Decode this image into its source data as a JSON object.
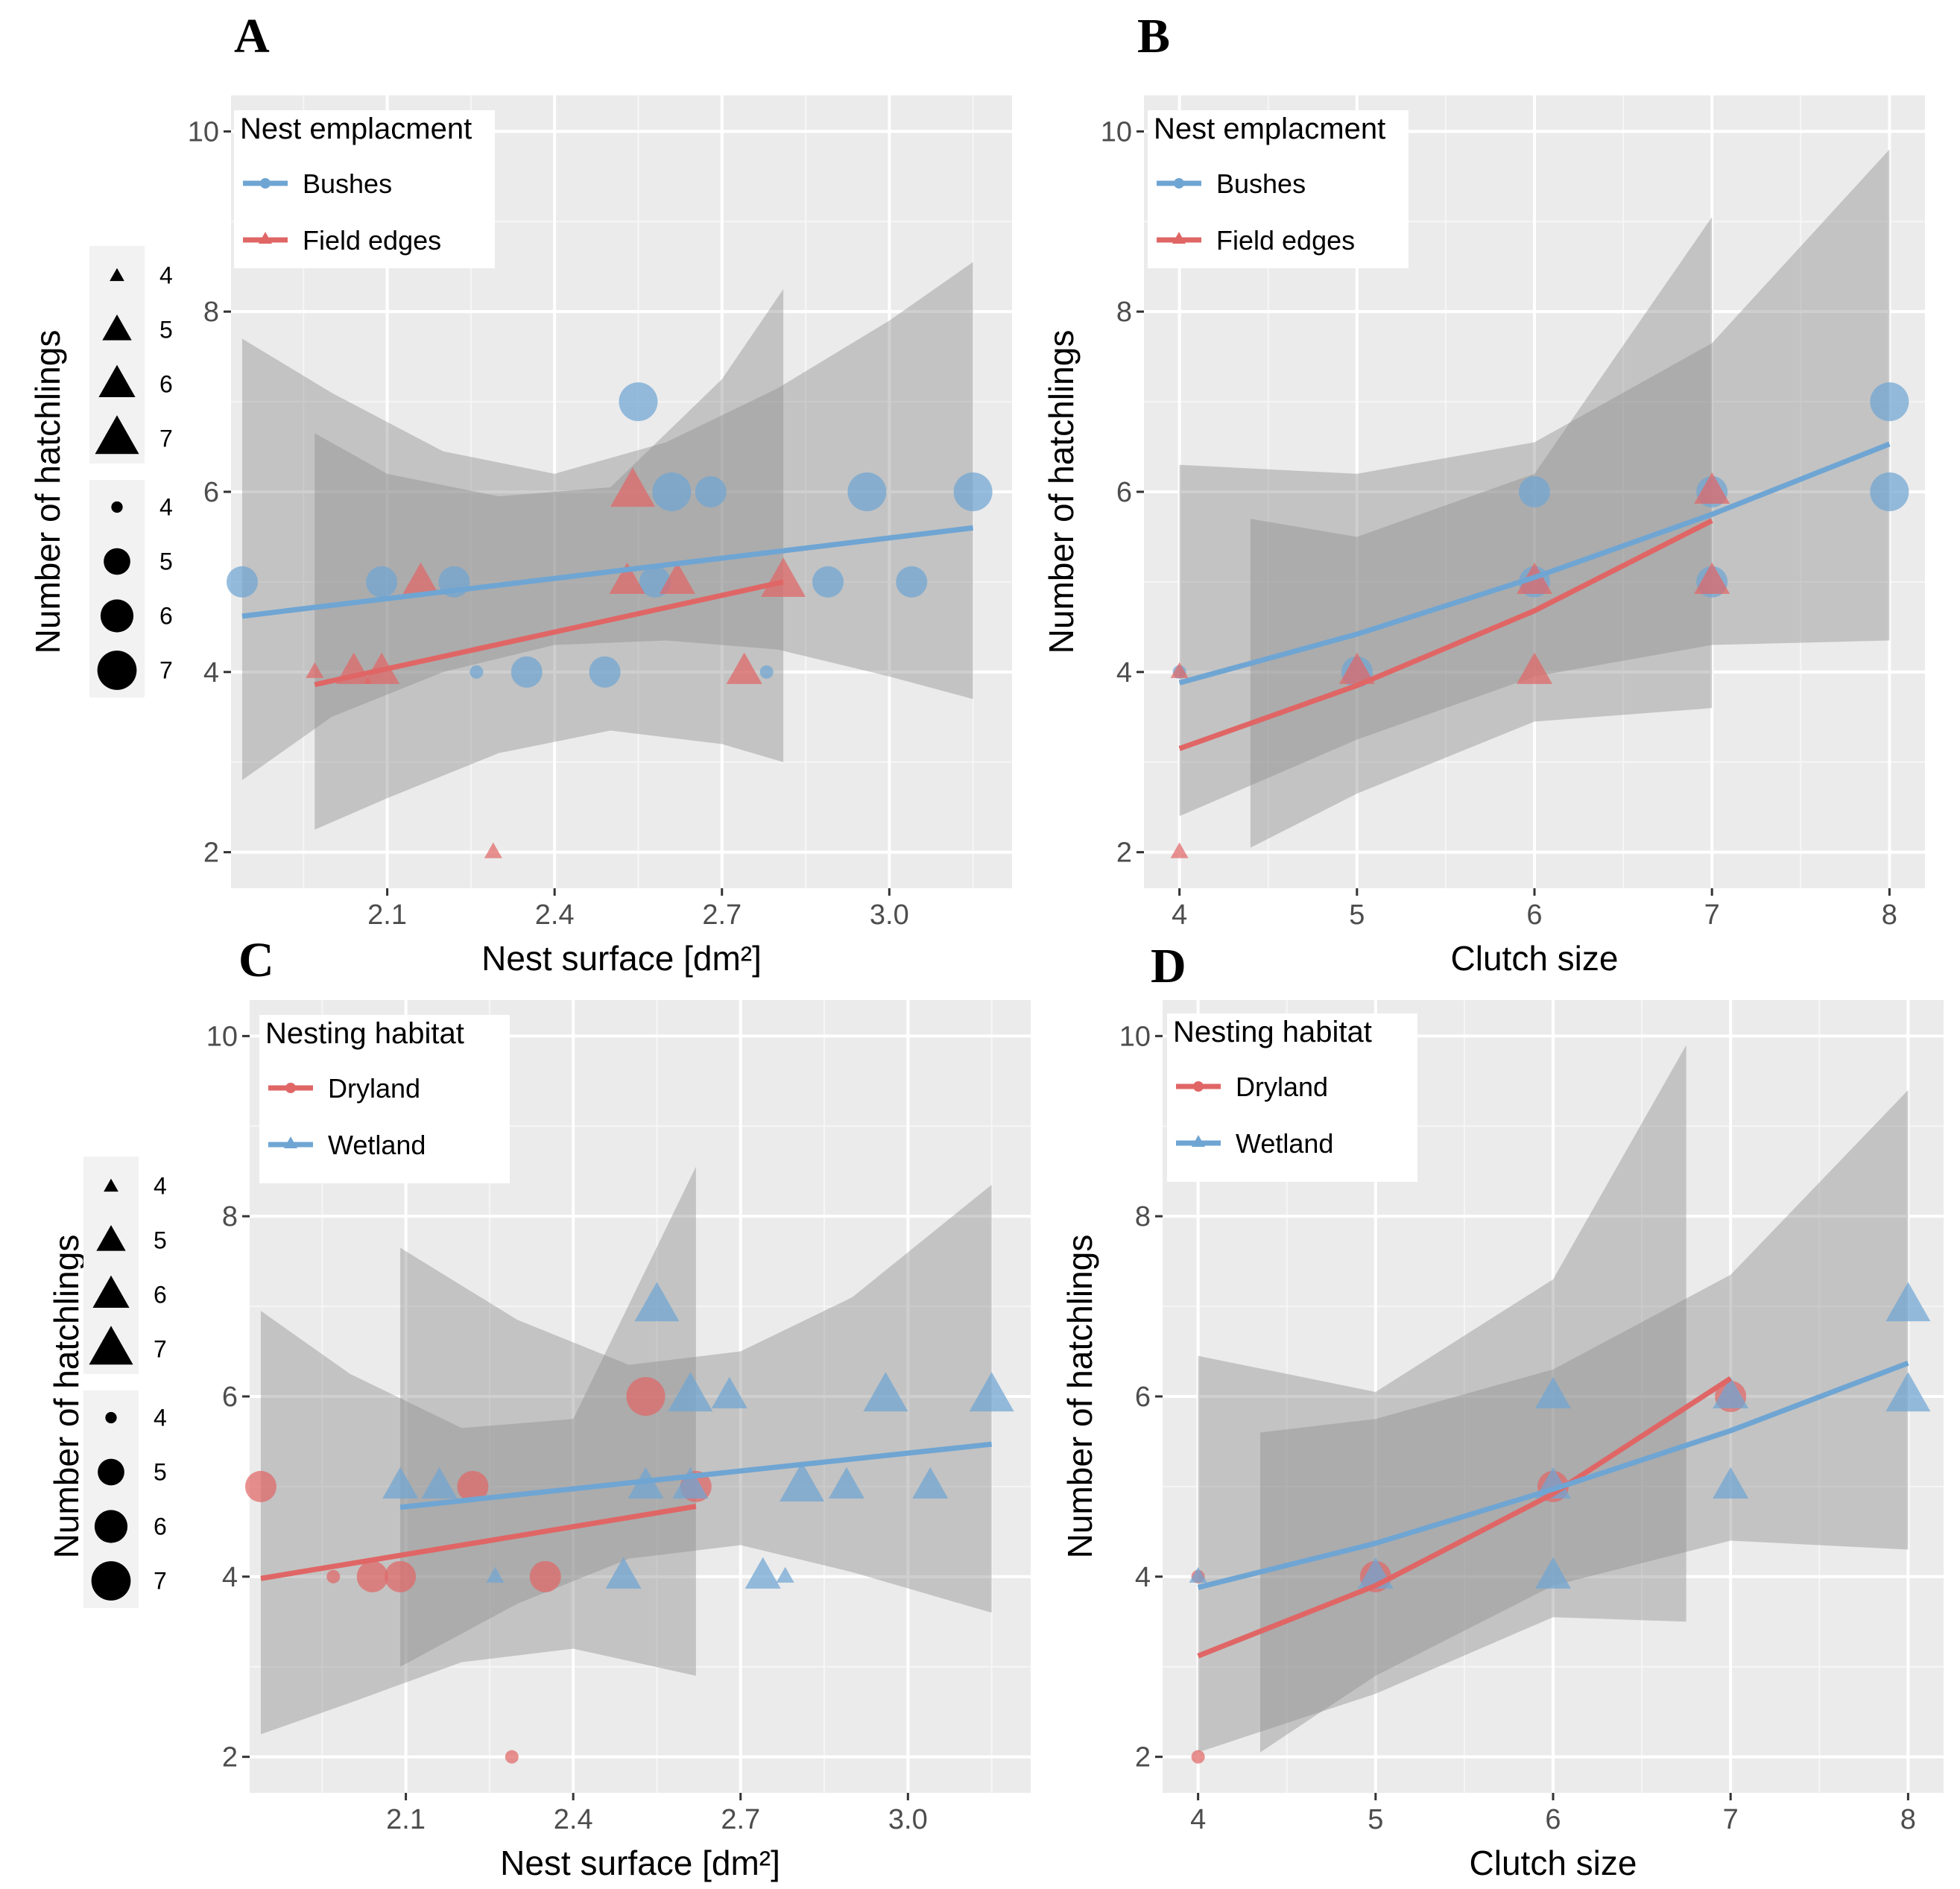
{
  "chart_data": [
    {
      "panel": "A",
      "type": "scatter",
      "xlabel": "Nest surface [dm²]",
      "ylabel": "Number of hatchlings",
      "xlim": [
        1.82,
        3.22
      ],
      "ylim": [
        1.6,
        10.4
      ],
      "xticks": [
        2.1,
        2.4,
        2.7,
        3.0
      ],
      "xtick_labels": [
        "2.1",
        "2.4",
        "2.7",
        "3.0"
      ],
      "yticks": [
        2,
        4,
        6,
        8,
        10
      ],
      "ytick_labels": [
        "2",
        "4",
        "6",
        "8",
        "10"
      ],
      "legend": {
        "title": "Nest emplacment",
        "entries": [
          {
            "label": "Bushes",
            "color": "#6fa5d3",
            "shape": "circle"
          },
          {
            "label": "Field edges",
            "color": "#e06666",
            "shape": "triangle"
          }
        ]
      },
      "size_legend": {
        "triangle_labels": [
          "4",
          "5",
          "6",
          "7"
        ],
        "circle_labels": [
          "4",
          "5",
          "6",
          "7"
        ]
      },
      "series": [
        {
          "name": "Bushes",
          "shape": "circle",
          "color": "#6fa5d3",
          "points": [
            {
              "x": 1.84,
              "y": 5,
              "size": 5
            },
            {
              "x": 2.09,
              "y": 5,
              "size": 5
            },
            {
              "x": 2.22,
              "y": 5,
              "size": 5
            },
            {
              "x": 2.26,
              "y": 4,
              "size": 4
            },
            {
              "x": 2.35,
              "y": 4,
              "size": 5
            },
            {
              "x": 2.49,
              "y": 4,
              "size": 5
            },
            {
              "x": 2.55,
              "y": 7,
              "size": 6
            },
            {
              "x": 2.58,
              "y": 5,
              "size": 5
            },
            {
              "x": 2.61,
              "y": 6,
              "size": 6
            },
            {
              "x": 2.68,
              "y": 6,
              "size": 5
            },
            {
              "x": 2.78,
              "y": 4,
              "size": 4
            },
            {
              "x": 2.89,
              "y": 5,
              "size": 5
            },
            {
              "x": 2.96,
              "y": 6,
              "size": 6
            },
            {
              "x": 3.04,
              "y": 5,
              "size": 5
            },
            {
              "x": 3.15,
              "y": 6,
              "size": 6
            }
          ],
          "fit": {
            "x": [
              1.84,
              3.15
            ],
            "y": [
              4.62,
              5.6
            ]
          },
          "ribbon": {
            "x": [
              1.84,
              2.0,
              2.2,
              2.4,
              2.6,
              2.8,
              3.0,
              3.15
            ],
            "lower": [
              2.8,
              3.5,
              4.0,
              4.3,
              4.35,
              4.25,
              3.95,
              3.7
            ],
            "upper": [
              7.7,
              7.1,
              6.45,
              6.2,
              6.55,
              7.15,
              7.9,
              8.55
            ]
          }
        },
        {
          "name": "Field edges",
          "shape": "triangle",
          "color": "#e06666",
          "points": [
            {
              "x": 1.97,
              "y": 4,
              "size": 4
            },
            {
              "x": 2.04,
              "y": 4,
              "size": 5
            },
            {
              "x": 2.09,
              "y": 4,
              "size": 5
            },
            {
              "x": 2.16,
              "y": 5,
              "size": 5
            },
            {
              "x": 2.29,
              "y": 2,
              "size": 4
            },
            {
              "x": 2.53,
              "y": 5,
              "size": 5
            },
            {
              "x": 2.54,
              "y": 6,
              "size": 6
            },
            {
              "x": 2.62,
              "y": 5,
              "size": 5
            },
            {
              "x": 2.74,
              "y": 4,
              "size": 5
            },
            {
              "x": 2.81,
              "y": 5,
              "size": 6
            }
          ],
          "fit": {
            "x": [
              1.97,
              2.81
            ],
            "y": [
              3.86,
              5.0
            ]
          },
          "ribbon": {
            "x": [
              1.97,
              2.1,
              2.3,
              2.5,
              2.7,
              2.81
            ],
            "lower": [
              2.25,
              2.6,
              3.1,
              3.35,
              3.2,
              3.0
            ],
            "upper": [
              6.65,
              6.2,
              5.95,
              6.05,
              7.25,
              8.25
            ]
          }
        }
      ]
    },
    {
      "panel": "B",
      "type": "scatter",
      "xlabel": "Clutch size",
      "ylabel": "Number of hatchlings",
      "xlim": [
        3.8,
        8.2
      ],
      "ylim": [
        1.6,
        10.4
      ],
      "xticks": [
        4,
        5,
        6,
        7,
        8
      ],
      "xtick_labels": [
        "4",
        "5",
        "6",
        "7",
        "8"
      ],
      "yticks": [
        2,
        4,
        6,
        8,
        10
      ],
      "ytick_labels": [
        "2",
        "4",
        "6",
        "8",
        "10"
      ],
      "legend": {
        "title": "Nest emplacment",
        "entries": [
          {
            "label": "Bushes",
            "color": "#6fa5d3",
            "shape": "circle"
          },
          {
            "label": "Field edges",
            "color": "#e06666",
            "shape": "triangle"
          }
        ]
      },
      "series": [
        {
          "name": "Bushes",
          "shape": "circle",
          "color": "#6fa5d3",
          "points": [
            {
              "x": 4,
              "y": 4,
              "size": 4
            },
            {
              "x": 5,
              "y": 4,
              "size": 5
            },
            {
              "x": 6,
              "y": 5,
              "size": 5
            },
            {
              "x": 6,
              "y": 6,
              "size": 5
            },
            {
              "x": 7,
              "y": 5,
              "size": 5
            },
            {
              "x": 7,
              "y": 6,
              "size": 5
            },
            {
              "x": 8,
              "y": 6,
              "size": 6
            },
            {
              "x": 8,
              "y": 7,
              "size": 6
            }
          ],
          "fit": {
            "x": [
              4,
              5,
              6,
              7,
              8
            ],
            "y": [
              3.88,
              4.42,
              5.05,
              5.75,
              6.53
            ]
          },
          "ribbon": {
            "x": [
              4,
              5,
              6,
              7,
              8
            ],
            "lower": [
              2.4,
              3.25,
              3.95,
              4.3,
              4.35
            ],
            "upper": [
              6.3,
              6.2,
              6.55,
              7.65,
              9.8
            ]
          }
        },
        {
          "name": "Field edges",
          "shape": "triangle",
          "color": "#e06666",
          "points": [
            {
              "x": 4,
              "y": 2,
              "size": 4
            },
            {
              "x": 4,
              "y": 4,
              "size": 4
            },
            {
              "x": 5,
              "y": 4,
              "size": 5
            },
            {
              "x": 6,
              "y": 4,
              "size": 5
            },
            {
              "x": 6,
              "y": 5,
              "size": 5
            },
            {
              "x": 7,
              "y": 5,
              "size": 5
            },
            {
              "x": 7,
              "y": 6,
              "size": 5
            }
          ],
          "fit": {
            "x": [
              4,
              5,
              6,
              7
            ],
            "y": [
              3.15,
              3.85,
              4.68,
              5.68
            ]
          },
          "ribbon": {
            "x": [
              4.4,
              5,
              6,
              7
            ],
            "lower": [
              2.05,
              2.65,
              3.45,
              3.6
            ],
            "upper": [
              5.7,
              5.5,
              6.2,
              9.05
            ]
          }
        }
      ]
    },
    {
      "panel": "C",
      "type": "scatter",
      "xlabel": "Nest surface [dm²]",
      "ylabel": "Number of hatchlings",
      "xlim": [
        1.82,
        3.22
      ],
      "ylim": [
        1.6,
        10.4
      ],
      "xticks": [
        2.1,
        2.4,
        2.7,
        3.0
      ],
      "xtick_labels": [
        "2.1",
        "2.4",
        "2.7",
        "3.0"
      ],
      "yticks": [
        2,
        4,
        6,
        8,
        10
      ],
      "ytick_labels": [
        "2",
        "4",
        "6",
        "8",
        "10"
      ],
      "legend": {
        "title": "Nesting habitat",
        "entries": [
          {
            "label": "Dryland",
            "color": "#e06666",
            "shape": "circle"
          },
          {
            "label": "Wetland",
            "color": "#6fa5d3",
            "shape": "triangle"
          }
        ]
      },
      "size_legend": {
        "triangle_labels": [
          "4",
          "5",
          "6",
          "7"
        ],
        "circle_labels": [
          "4",
          "5",
          "6",
          "7"
        ]
      },
      "series": [
        {
          "name": "Dryland",
          "shape": "circle",
          "color": "#e06666",
          "points": [
            {
              "x": 1.84,
              "y": 5,
              "size": 5
            },
            {
              "x": 1.97,
              "y": 4,
              "size": 4
            },
            {
              "x": 2.04,
              "y": 4,
              "size": 5
            },
            {
              "x": 2.09,
              "y": 4,
              "size": 5
            },
            {
              "x": 2.22,
              "y": 5,
              "size": 5
            },
            {
              "x": 2.29,
              "y": 2,
              "size": 4
            },
            {
              "x": 2.35,
              "y": 4,
              "size": 5
            },
            {
              "x": 2.53,
              "y": 6,
              "size": 6
            },
            {
              "x": 2.62,
              "y": 5,
              "size": 5
            }
          ],
          "fit": {
            "x": [
              1.84,
              2.62
            ],
            "y": [
              3.98,
              4.78
            ]
          },
          "ribbon": {
            "x": [
              1.84,
              2.0,
              2.2,
              2.4,
              2.62
            ],
            "lower": [
              2.25,
              2.6,
              3.05,
              3.2,
              2.9
            ],
            "upper": [
              6.95,
              6.25,
              5.65,
              5.75,
              8.55
            ]
          }
        },
        {
          "name": "Wetland",
          "shape": "triangle",
          "color": "#6fa5d3",
          "points": [
            {
              "x": 2.09,
              "y": 5,
              "size": 5
            },
            {
              "x": 2.16,
              "y": 5,
              "size": 5
            },
            {
              "x": 2.26,
              "y": 4,
              "size": 4
            },
            {
              "x": 2.49,
              "y": 4,
              "size": 5
            },
            {
              "x": 2.53,
              "y": 5,
              "size": 5
            },
            {
              "x": 2.55,
              "y": 7,
              "size": 6
            },
            {
              "x": 2.61,
              "y": 5,
              "size": 5
            },
            {
              "x": 2.61,
              "y": 6,
              "size": 6
            },
            {
              "x": 2.68,
              "y": 6,
              "size": 5
            },
            {
              "x": 2.74,
              "y": 4,
              "size": 5
            },
            {
              "x": 2.78,
              "y": 4,
              "size": 4
            },
            {
              "x": 2.81,
              "y": 5,
              "size": 6
            },
            {
              "x": 2.89,
              "y": 5,
              "size": 5
            },
            {
              "x": 2.96,
              "y": 6,
              "size": 6
            },
            {
              "x": 3.04,
              "y": 5,
              "size": 5
            },
            {
              "x": 3.15,
              "y": 6,
              "size": 6
            }
          ],
          "fit": {
            "x": [
              2.09,
              3.15
            ],
            "y": [
              4.77,
              5.47
            ]
          },
          "ribbon": {
            "x": [
              2.09,
              2.3,
              2.5,
              2.7,
              2.9,
              3.15
            ],
            "lower": [
              3.0,
              3.7,
              4.2,
              4.35,
              4.05,
              3.6
            ],
            "upper": [
              7.65,
              6.85,
              6.35,
              6.5,
              7.1,
              8.35
            ]
          }
        }
      ]
    },
    {
      "panel": "D",
      "type": "scatter",
      "xlabel": "Clutch size",
      "ylabel": "Number of hatchlings",
      "xlim": [
        3.8,
        8.2
      ],
      "ylim": [
        1.6,
        10.4
      ],
      "xticks": [
        4,
        5,
        6,
        7,
        8
      ],
      "xtick_labels": [
        "4",
        "5",
        "6",
        "7",
        "8"
      ],
      "yticks": [
        2,
        4,
        6,
        8,
        10
      ],
      "ytick_labels": [
        "2",
        "4",
        "6",
        "8",
        "10"
      ],
      "legend": {
        "title": "Nesting habitat",
        "entries": [
          {
            "label": "Dryland",
            "color": "#e06666",
            "shape": "circle"
          },
          {
            "label": "Wetland",
            "color": "#6fa5d3",
            "shape": "triangle"
          }
        ]
      },
      "series": [
        {
          "name": "Dryland",
          "shape": "circle",
          "color": "#e06666",
          "points": [
            {
              "x": 4,
              "y": 2,
              "size": 4
            },
            {
              "x": 4,
              "y": 4,
              "size": 4
            },
            {
              "x": 5,
              "y": 4,
              "size": 5
            },
            {
              "x": 6,
              "y": 5,
              "size": 5
            },
            {
              "x": 7,
              "y": 6,
              "size": 5
            }
          ],
          "fit": {
            "x": [
              4,
              5,
              6,
              7
            ],
            "y": [
              3.12,
              3.9,
              4.92,
              6.2
            ]
          },
          "ribbon": {
            "x": [
              4,
              5,
              6,
              6.75
            ],
            "lower": [
              2.05,
              2.7,
              3.55,
              3.5
            ],
            "upper": [
              6.45,
              6.05,
              7.3,
              9.9
            ]
          }
        },
        {
          "name": "Wetland",
          "shape": "triangle",
          "color": "#6fa5d3",
          "points": [
            {
              "x": 4,
              "y": 4,
              "size": 4
            },
            {
              "x": 5,
              "y": 4,
              "size": 5
            },
            {
              "x": 6,
              "y": 4,
              "size": 5
            },
            {
              "x": 6,
              "y": 5,
              "size": 5
            },
            {
              "x": 6,
              "y": 6,
              "size": 5
            },
            {
              "x": 7,
              "y": 5,
              "size": 5
            },
            {
              "x": 7,
              "y": 6,
              "size": 5
            },
            {
              "x": 8,
              "y": 6,
              "size": 6
            },
            {
              "x": 8,
              "y": 7,
              "size": 6
            }
          ],
          "fit": {
            "x": [
              4,
              5,
              6,
              7,
              8
            ],
            "y": [
              3.88,
              4.37,
              4.97,
              5.62,
              6.37
            ]
          },
          "ribbon": {
            "x": [
              4.35,
              5,
              6,
              7,
              8
            ],
            "lower": [
              2.05,
              2.9,
              3.9,
              4.4,
              4.3
            ],
            "upper": [
              5.6,
              5.75,
              6.3,
              7.35,
              9.4
            ]
          }
        }
      ]
    }
  ]
}
